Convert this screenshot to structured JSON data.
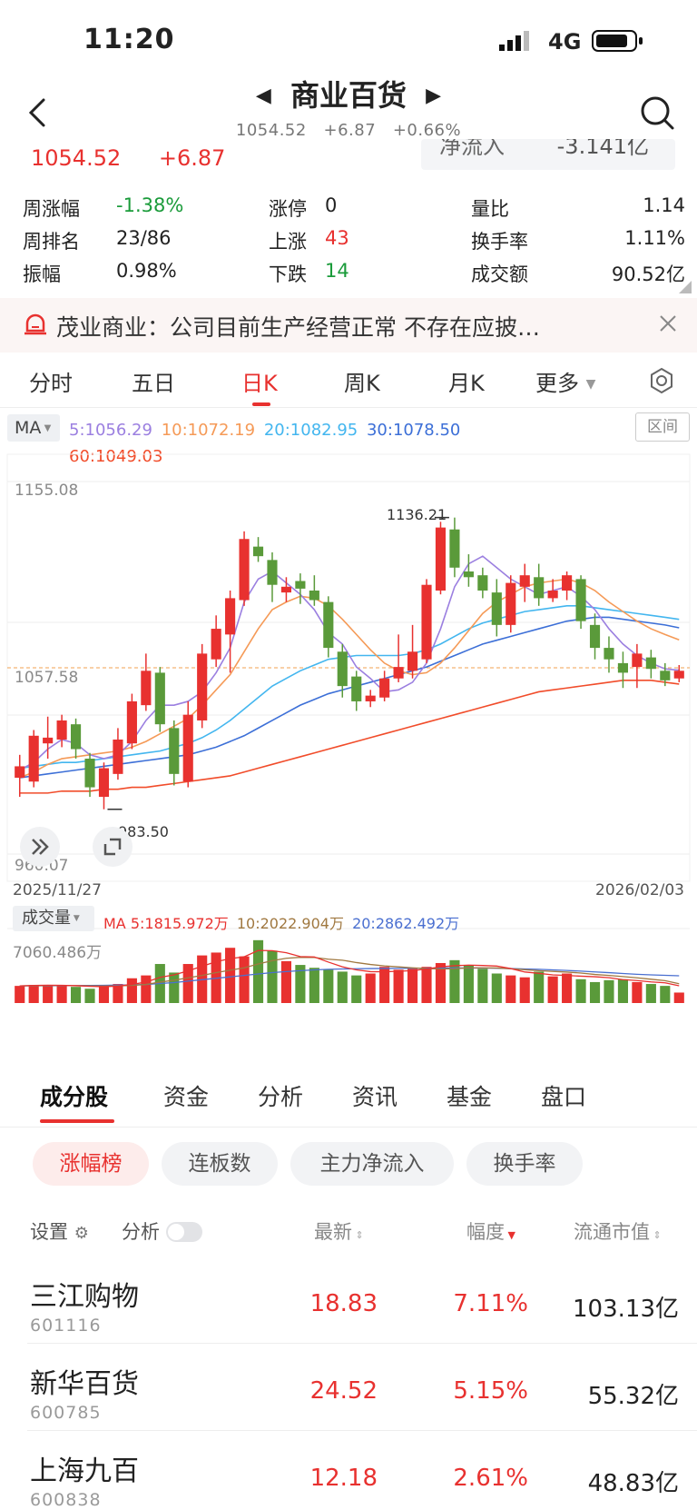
{
  "status": {
    "time": "11:20",
    "network": "4G"
  },
  "header": {
    "title": "商业百货",
    "price": "1054.52",
    "change": "+6.87",
    "pct": "+0.66%"
  },
  "quote": {
    "price": "1054.52",
    "change": "+6.87",
    "netflow_label": "净流入",
    "netflow_value": "-3.141亿"
  },
  "stats": {
    "week_change_label": "周涨幅",
    "week_change": "-1.38%",
    "week_rank_label": "周排名",
    "week_rank": "23/86",
    "amplitude_label": "振幅",
    "amplitude": "0.98%",
    "limit_up_label": "涨停",
    "limit_up": "0",
    "up_label": "上涨",
    "up": "43",
    "down_label": "下跌",
    "down": "14",
    "vol_ratio_label": "量比",
    "vol_ratio": "1.14",
    "turnover_label": "换手率",
    "turnover": "1.11%",
    "amount_label": "成交额",
    "amount": "90.52亿"
  },
  "banner": {
    "text": "茂业商业：公司目前生产经营正常  不存在应披…"
  },
  "period_tabs": {
    "t1": "分时",
    "t2": "五日",
    "t3": "日K",
    "t4": "周K",
    "t5": "月K",
    "t6": "更多"
  },
  "ma": {
    "label": "MA",
    "ma5": "5:1056.29",
    "ma10": "10:1072.19",
    "ma20": "20:1082.95",
    "ma30": "30:1078.50",
    "ma60": "60:1049.03",
    "range_button": "区间"
  },
  "axis": {
    "top": "1155.08",
    "mid": "1057.58",
    "bottom": "960.07",
    "date_start": "2025/11/27",
    "date_end": "2026/02/03",
    "high_label": "1136.21",
    "low_label": "983.50"
  },
  "volume": {
    "label": "成交量",
    "ma5": "MA 5:1815.972万",
    "ma10": "10:2022.904万",
    "ma20": "20:2862.492万",
    "top": "7060.486万",
    "bottom": "0.000"
  },
  "colors": {
    "up": "#e8312f",
    "down": "#5a9a3a",
    "ma5": "#9b7fe0",
    "ma10": "#f59a57",
    "ma20": "#43b6ef",
    "ma30": "#3c6fd7",
    "ma60": "#f14c2a"
  },
  "bottom_tabs": {
    "t1": "成分股",
    "t2": "资金",
    "t3": "分析",
    "t4": "资讯",
    "t5": "基金",
    "t6": "盘口"
  },
  "chips": {
    "c1": "涨幅榜",
    "c2": "连板数",
    "c3": "主力净流入",
    "c4": "换手率"
  },
  "table": {
    "settings": "设置",
    "analysis": "分析",
    "col_latest": "最新",
    "col_change": "幅度",
    "col_mktcap": "流通市值",
    "rows": [
      {
        "name": "三江购物",
        "code": "601116",
        "latest": "18.83",
        "change": "7.11%",
        "mktcap": "103.13亿"
      },
      {
        "name": "新华百货",
        "code": "600785",
        "latest": "24.52",
        "change": "5.15%",
        "mktcap": "55.32亿"
      },
      {
        "name": "上海九百",
        "code": "600838",
        "latest": "12.18",
        "change": "2.61%",
        "mktcap": "48.83亿"
      }
    ]
  },
  "chart_data": {
    "type": "candlestick",
    "x_range": [
      "2025/11/27",
      "2026/02/03"
    ],
    "y_range": [
      960.07,
      1155.08
    ],
    "high": 1136.21,
    "low": 983.5,
    "candles": [
      {
        "o": 1000,
        "c": 1006,
        "h": 1012,
        "l": 990
      },
      {
        "o": 998,
        "c": 1022,
        "h": 1025,
        "l": 995
      },
      {
        "o": 1018,
        "c": 1021,
        "h": 1032,
        "l": 1010
      },
      {
        "o": 1020,
        "c": 1030,
        "h": 1033,
        "l": 1016
      },
      {
        "o": 1028,
        "c": 1015,
        "h": 1031,
        "l": 1010
      },
      {
        "o": 1010,
        "c": 995,
        "h": 1013,
        "l": 990
      },
      {
        "o": 990,
        "c": 1005,
        "h": 1008,
        "l": 983.5
      },
      {
        "o": 1002,
        "c": 1020,
        "h": 1026,
        "l": 999
      },
      {
        "o": 1018,
        "c": 1040,
        "h": 1044,
        "l": 1015
      },
      {
        "o": 1038,
        "c": 1056,
        "h": 1065,
        "l": 1035
      },
      {
        "o": 1055,
        "c": 1028,
        "h": 1058,
        "l": 1024
      },
      {
        "o": 1026,
        "c": 1002,
        "h": 1030,
        "l": 996
      },
      {
        "o": 998,
        "c": 1033,
        "h": 1040,
        "l": 995
      },
      {
        "o": 1030,
        "c": 1065,
        "h": 1070,
        "l": 1026
      },
      {
        "o": 1062,
        "c": 1078,
        "h": 1085,
        "l": 1058
      },
      {
        "o": 1075,
        "c": 1094,
        "h": 1098,
        "l": 1055
      },
      {
        "o": 1093,
        "c": 1125,
        "h": 1129,
        "l": 1090
      },
      {
        "o": 1121,
        "c": 1116,
        "h": 1126,
        "l": 1113
      },
      {
        "o": 1114,
        "c": 1101,
        "h": 1118,
        "l": 1092
      },
      {
        "o": 1097,
        "c": 1100,
        "h": 1105,
        "l": 1092
      },
      {
        "o": 1103,
        "c": 1099,
        "h": 1107,
        "l": 1091
      },
      {
        "o": 1098,
        "c": 1093,
        "h": 1106,
        "l": 1090
      },
      {
        "o": 1092,
        "c": 1068,
        "h": 1095,
        "l": 1063
      },
      {
        "o": 1066,
        "c": 1048,
        "h": 1070,
        "l": 1042
      },
      {
        "o": 1053,
        "c": 1040,
        "h": 1056,
        "l": 1035
      },
      {
        "o": 1040,
        "c": 1043,
        "h": 1046,
        "l": 1037
      },
      {
        "o": 1042,
        "c": 1052,
        "h": 1056,
        "l": 1040
      },
      {
        "o": 1052,
        "c": 1058,
        "h": 1075,
        "l": 1050
      },
      {
        "o": 1056,
        "c": 1066,
        "h": 1080,
        "l": 1052
      },
      {
        "o": 1062,
        "c": 1101,
        "h": 1104,
        "l": 1060
      },
      {
        "o": 1098,
        "c": 1131,
        "h": 1134,
        "l": 1096
      },
      {
        "o": 1130,
        "c": 1110,
        "h": 1136.21,
        "l": 1105
      },
      {
        "o": 1108,
        "c": 1105,
        "h": 1117,
        "l": 1100
      },
      {
        "o": 1106,
        "c": 1098,
        "h": 1110,
        "l": 1094
      },
      {
        "o": 1097,
        "c": 1080,
        "h": 1104,
        "l": 1074
      },
      {
        "o": 1080,
        "c": 1102,
        "h": 1106,
        "l": 1076
      },
      {
        "o": 1100,
        "c": 1106,
        "h": 1112,
        "l": 1092
      },
      {
        "o": 1105,
        "c": 1094,
        "h": 1112,
        "l": 1090
      },
      {
        "o": 1094,
        "c": 1098,
        "h": 1104,
        "l": 1092
      },
      {
        "o": 1098,
        "c": 1106,
        "h": 1108,
        "l": 1093
      },
      {
        "o": 1104,
        "c": 1082,
        "h": 1106,
        "l": 1078
      },
      {
        "o": 1080,
        "c": 1068,
        "h": 1086,
        "l": 1062
      },
      {
        "o": 1068,
        "c": 1062,
        "h": 1074,
        "l": 1055
      },
      {
        "o": 1060,
        "c": 1055,
        "h": 1066,
        "l": 1047
      },
      {
        "o": 1058,
        "c": 1065,
        "h": 1070,
        "l": 1047
      },
      {
        "o": 1063,
        "c": 1057,
        "h": 1067,
        "l": 1052
      },
      {
        "o": 1056,
        "c": 1051,
        "h": 1060,
        "l": 1048
      },
      {
        "o": 1052,
        "c": 1056,
        "h": 1059,
        "l": 1050
      }
    ],
    "ma5": [
      1004,
      1008,
      1015,
      1020,
      1018,
      1012,
      1010,
      1012,
      1019,
      1030,
      1038,
      1038,
      1040,
      1045,
      1055,
      1068,
      1092,
      1104,
      1108,
      1102,
      1096,
      1088,
      1076,
      1070,
      1058,
      1052,
      1045,
      1046,
      1050,
      1060,
      1078,
      1100,
      1112,
      1116,
      1110,
      1104,
      1100,
      1096,
      1098,
      1100,
      1095,
      1088,
      1078,
      1070,
      1064,
      1060,
      1057,
      1056.29
    ],
    "ma10": [
      1000,
      1003,
      1007,
      1010,
      1011,
      1012,
      1013,
      1014,
      1016,
      1019,
      1023,
      1027,
      1031,
      1038,
      1046,
      1054,
      1066,
      1078,
      1088,
      1092,
      1095,
      1094,
      1090,
      1083,
      1075,
      1067,
      1060,
      1056,
      1054,
      1055,
      1060,
      1068,
      1077,
      1086,
      1092,
      1096,
      1100,
      1102,
      1103,
      1104,
      1102,
      1098,
      1092,
      1087,
      1082,
      1078,
      1075,
      1072.19
    ],
    "ma20": [
      1005,
      1006,
      1007,
      1008,
      1008,
      1009,
      1010,
      1011,
      1012,
      1013,
      1014,
      1016,
      1018,
      1021,
      1025,
      1030,
      1036,
      1042,
      1048,
      1052,
      1056,
      1059,
      1062,
      1063,
      1064,
      1064,
      1064,
      1064,
      1065,
      1067,
      1070,
      1074,
      1078,
      1081,
      1083,
      1085,
      1087,
      1088,
      1089,
      1090,
      1090,
      1089,
      1088,
      1087,
      1086,
      1085,
      1084,
      1082.95
    ],
    "ma30": [
      1000,
      1001,
      1002,
      1003,
      1004,
      1005,
      1006,
      1007,
      1008,
      1009,
      1010,
      1011,
      1012,
      1014,
      1016,
      1019,
      1022,
      1026,
      1030,
      1034,
      1038,
      1041,
      1044,
      1046,
      1048,
      1050,
      1052,
      1054,
      1056,
      1058,
      1061,
      1064,
      1067,
      1070,
      1072,
      1074,
      1076,
      1078,
      1080,
      1082,
      1083,
      1084,
      1084,
      1083,
      1082,
      1081,
      1080,
      1078.5
    ],
    "ma60": [
      992,
      992,
      992,
      993,
      993,
      993,
      994,
      994,
      995,
      995,
      996,
      997,
      998,
      999,
      1000,
      1001,
      1003,
      1005,
      1007,
      1009,
      1011,
      1013,
      1015,
      1017,
      1019,
      1021,
      1023,
      1025,
      1027,
      1029,
      1031,
      1033,
      1035,
      1037,
      1039,
      1041,
      1043,
      1045,
      1046,
      1047,
      1048,
      1049,
      1050,
      1051,
      1051,
      1051,
      1050,
      1049.03
    ],
    "volume": [
      1800,
      1900,
      1900,
      1850,
      1700,
      1500,
      1700,
      2000,
      2600,
      2900,
      4100,
      3200,
      4100,
      5000,
      5300,
      5800,
      4900,
      6600,
      5500,
      4400,
      4000,
      3700,
      3500,
      3300,
      2900,
      3100,
      3800,
      3500,
      3600,
      3800,
      4200,
      4500,
      4000,
      3600,
      3100,
      2900,
      2700,
      3300,
      2800,
      3100,
      2500,
      2200,
      2400,
      2500,
      2200,
      2000,
      1800,
      1100
    ],
    "vol_ma5": [
      1800,
      1850,
      1870,
      1860,
      1820,
      1750,
      1720,
      1780,
      1960,
      2200,
      2700,
      2960,
      3380,
      3860,
      4340,
      4660,
      4860,
      5520,
      5500,
      5280,
      4880,
      4840,
      4300,
      3800,
      3480,
      3300,
      3280,
      3340,
      3400,
      3580,
      3800,
      3920,
      3980,
      3940,
      3880,
      3620,
      3260,
      3120,
      2960,
      2900,
      2820,
      2760,
      2660,
      2460,
      2360,
      2220,
      2120,
      1815.972
    ],
    "vol_ma10": [
      1800,
      1820,
      1840,
      1850,
      1840,
      1800,
      1790,
      1800,
      1850,
      1950,
      2200,
      2400,
      2650,
      2900,
      3200,
      3450,
      3700,
      4100,
      4450,
      4700,
      4800,
      4780,
      4600,
      4500,
      4250,
      4050,
      3900,
      3800,
      3700,
      3620,
      3580,
      3600,
      3700,
      3700,
      3680,
      3600,
      3500,
      3400,
      3320,
      3250,
      3150,
      3000,
      2900,
      2780,
      2650,
      2500,
      2350,
      2022.904
    ],
    "vol_ma20": [
      1800,
      1810,
      1820,
      1830,
      1840,
      1850,
      1860,
      1880,
      1900,
      1950,
      2050,
      2150,
      2300,
      2450,
      2600,
      2750,
      2900,
      3050,
      3200,
      3300,
      3400,
      3480,
      3540,
      3580,
      3600,
      3620,
      3630,
      3640,
      3650,
      3660,
      3670,
      3680,
      3680,
      3670,
      3650,
      3620,
      3580,
      3540,
      3480,
      3420,
      3350,
      3270,
      3190,
      3100,
      3020,
      2960,
      2910,
      2862.492
    ]
  }
}
